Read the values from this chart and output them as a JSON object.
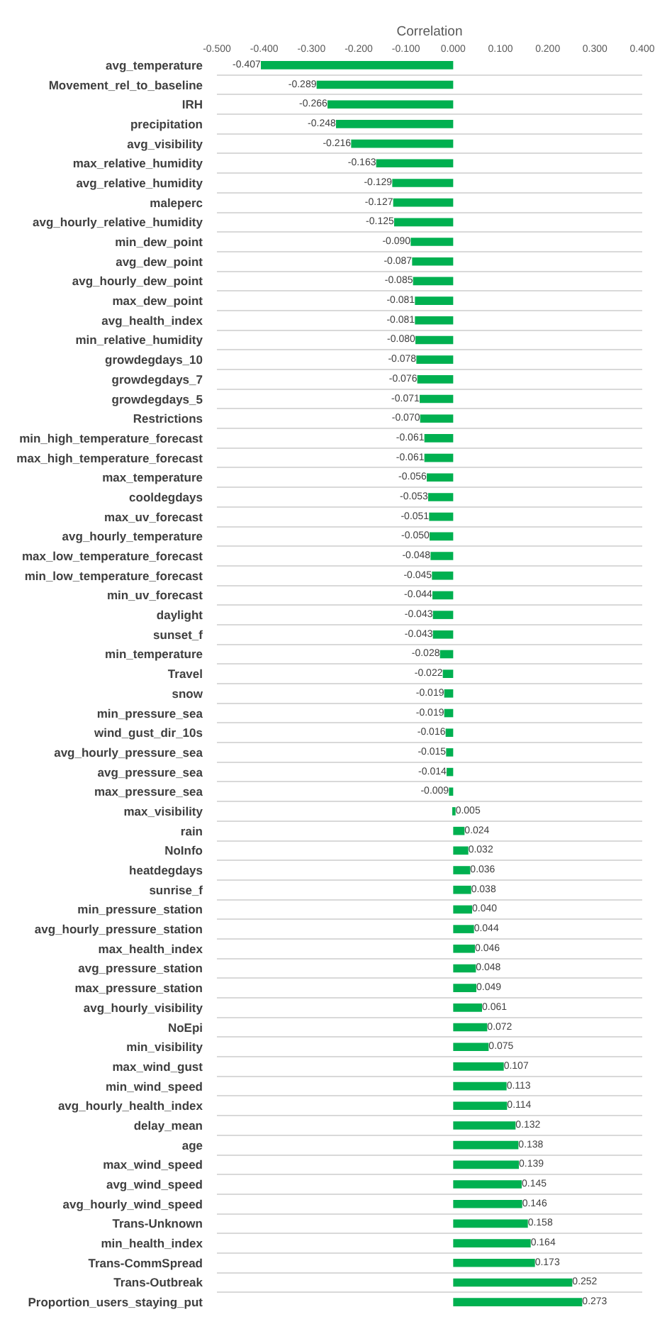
{
  "chart_data": {
    "type": "bar",
    "orientation": "horizontal",
    "xlabel": "Correlation",
    "categories": [
      "avg_temperature",
      "Movement_rel_to_baseline",
      "IRH",
      "precipitation",
      "avg_visibility",
      "max_relative_humidity",
      "avg_relative_humidity",
      "maleperc",
      "avg_hourly_relative_humidity",
      "min_dew_point",
      "avg_dew_point",
      "avg_hourly_dew_point",
      "max_dew_point",
      "avg_health_index",
      "min_relative_humidity",
      "growdegdays_10",
      "growdegdays_7",
      "growdegdays_5",
      "Restrictions",
      "min_high_temperature_forecast",
      "max_high_temperature_forecast",
      "max_temperature",
      "cooldegdays",
      "max_uv_forecast",
      "avg_hourly_temperature",
      "max_low_temperature_forecast",
      "min_low_temperature_forecast",
      "min_uv_forecast",
      "daylight",
      "sunset_f",
      "min_temperature",
      "Travel",
      "snow",
      "min_pressure_sea",
      "wind_gust_dir_10s",
      "avg_hourly_pressure_sea",
      "avg_pressure_sea",
      "max_pressure_sea",
      "max_visibility",
      "rain",
      "NoInfo",
      "heatdegdays",
      "sunrise_f",
      "min_pressure_station",
      "avg_hourly_pressure_station",
      "max_health_index",
      "avg_pressure_station",
      "max_pressure_station",
      "avg_hourly_visibility",
      "NoEpi",
      "min_visibility",
      "max_wind_gust",
      "min_wind_speed",
      "avg_hourly_health_index",
      "delay_mean",
      "age",
      "max_wind_speed",
      "avg_wind_speed",
      "avg_hourly_wind_speed",
      "Trans-Unknown",
      "min_health_index",
      "Trans-CommSpread",
      "Trans-Outbreak",
      "Proportion_users_staying_put"
    ],
    "values": [
      -0.407,
      -0.289,
      -0.266,
      -0.248,
      -0.216,
      -0.163,
      -0.129,
      -0.127,
      -0.125,
      -0.09,
      -0.087,
      -0.085,
      -0.081,
      -0.081,
      -0.08,
      -0.078,
      -0.076,
      -0.071,
      -0.07,
      -0.061,
      -0.061,
      -0.056,
      -0.053,
      -0.051,
      -0.05,
      -0.048,
      -0.045,
      -0.044,
      -0.043,
      -0.043,
      -0.028,
      -0.022,
      -0.019,
      -0.019,
      -0.016,
      -0.015,
      -0.014,
      -0.009,
      0.005,
      0.024,
      0.032,
      0.036,
      0.038,
      0.04,
      0.044,
      0.046,
      0.048,
      0.049,
      0.061,
      0.072,
      0.075,
      0.107,
      0.113,
      0.114,
      0.132,
      0.138,
      0.139,
      0.145,
      0.146,
      0.158,
      0.164,
      0.173,
      0.252,
      0.273
    ],
    "value_labels": [
      "-0.407",
      "-0.289",
      "-0.266",
      "-0.248",
      "-0.216",
      "-0.163",
      "-0.129",
      "-0.127",
      "-0.125",
      "-0.090",
      "-0.087",
      "-0.085",
      "-0.081",
      "-0.081",
      "-0.080",
      "-0.078",
      "-0.076",
      "-0.071",
      "-0.070",
      "-0.061",
      "-0.061",
      "-0.056",
      "-0.053",
      "-0.051",
      "-0.050",
      "-0.048",
      "-0.045",
      "-0.044",
      "-0.043",
      "-0.043",
      "-0.028",
      "-0.022",
      "-0.019",
      "-0.019",
      "-0.016",
      "-0.015",
      "-0.014",
      "-0.009",
      "0.005",
      "0.024",
      "0.032",
      "0.036",
      "0.038",
      "0.040",
      "0.044",
      "0.046",
      "0.048",
      "0.049",
      "0.061",
      "0.072",
      "0.075",
      "0.107",
      "0.113",
      "0.114",
      "0.132",
      "0.138",
      "0.139",
      "0.145",
      "0.146",
      "0.158",
      "0.164",
      "0.173",
      "0.252",
      "0.273"
    ],
    "color": "#00b050",
    "xlim": [
      -0.5,
      0.4
    ],
    "xticks": [
      {
        "value": -0.5,
        "label": "-0.500"
      },
      {
        "value": -0.4,
        "label": "-0.400"
      },
      {
        "value": -0.3,
        "label": "-0.300"
      },
      {
        "value": -0.2,
        "label": "-0.200"
      },
      {
        "value": -0.1,
        "label": "-0.100"
      },
      {
        "value": 0,
        "label": "0.000"
      },
      {
        "value": 0.1,
        "label": "0.100"
      },
      {
        "value": 0.2,
        "label": "0.200"
      },
      {
        "value": 0.3,
        "label": "0.300"
      },
      {
        "value": 0.4,
        "label": "0.400"
      }
    ],
    "grid": "y"
  }
}
